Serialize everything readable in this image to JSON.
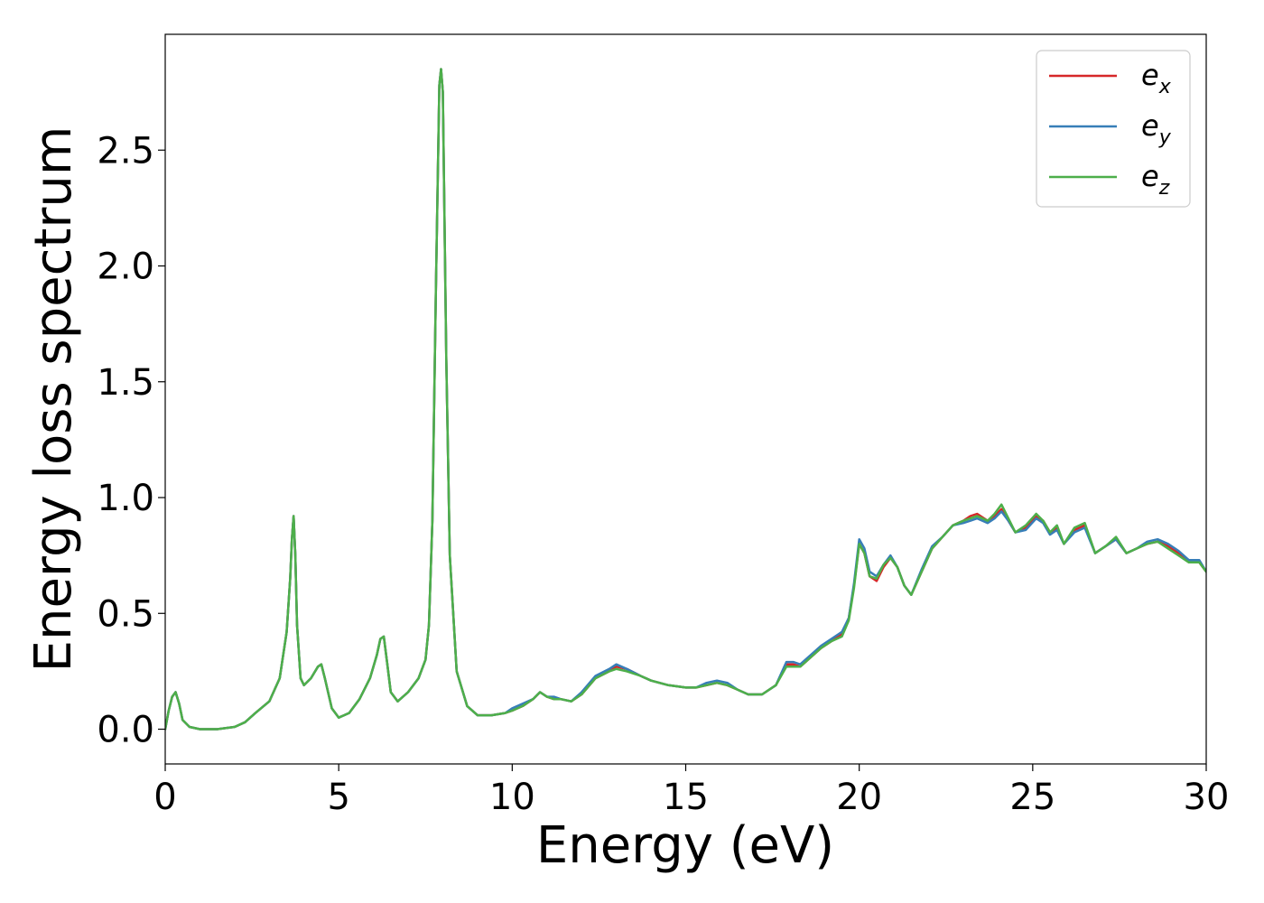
{
  "chart_data": {
    "type": "line",
    "title": "",
    "xlabel": "Energy (eV)",
    "ylabel": "Energy loss spectrum",
    "xlim": [
      0,
      30
    ],
    "ylim": [
      -0.15,
      3.0
    ],
    "xticks": [
      0,
      5,
      10,
      15,
      20,
      25,
      30
    ],
    "xtick_labels": [
      "0",
      "5",
      "10",
      "15",
      "20",
      "25",
      "30"
    ],
    "yticks": [
      0.0,
      0.5,
      1.0,
      1.5,
      2.0,
      2.5
    ],
    "ytick_labels": [
      "0.0",
      "0.5",
      "1.0",
      "1.5",
      "2.0",
      "2.5"
    ],
    "grid": false,
    "legend_position": "top-right",
    "series": [
      {
        "name": "e",
        "subscript": "x",
        "color": "#d62728",
        "x": [
          0,
          0.1,
          0.2,
          0.3,
          0.4,
          0.5,
          0.7,
          1.0,
          1.5,
          2.0,
          2.3,
          2.6,
          3.0,
          3.3,
          3.5,
          3.6,
          3.65,
          3.7,
          3.75,
          3.8,
          3.9,
          4.0,
          4.2,
          4.4,
          4.5,
          4.6,
          4.8,
          5.0,
          5.3,
          5.6,
          5.9,
          6.1,
          6.2,
          6.3,
          6.4,
          6.5,
          6.7,
          7.0,
          7.3,
          7.5,
          7.6,
          7.7,
          7.8,
          7.9,
          7.95,
          8.0,
          8.1,
          8.2,
          8.4,
          8.7,
          9.0,
          9.4,
          9.8,
          10.0,
          10.3,
          10.6,
          10.8,
          11.0,
          11.2,
          11.4,
          11.7,
          12.0,
          12.4,
          12.8,
          13.0,
          13.3,
          13.7,
          14.0,
          14.5,
          15.0,
          15.3,
          15.6,
          15.9,
          16.2,
          16.5,
          16.8,
          17.2,
          17.6,
          17.9,
          18.1,
          18.3,
          18.6,
          18.9,
          19.2,
          19.5,
          19.7,
          19.85,
          20.0,
          20.15,
          20.3,
          20.5,
          20.7,
          20.9,
          21.1,
          21.3,
          21.5,
          21.8,
          22.1,
          22.4,
          22.7,
          23.0,
          23.2,
          23.4,
          23.7,
          23.9,
          24.1,
          24.3,
          24.5,
          24.8,
          25.1,
          25.3,
          25.5,
          25.7,
          25.9,
          26.2,
          26.5,
          26.8,
          27.1,
          27.4,
          27.7,
          28.0,
          28.3,
          28.6,
          28.9,
          29.2,
          29.5,
          29.8,
          30.0
        ],
        "values": [
          0.0,
          0.08,
          0.14,
          0.16,
          0.11,
          0.04,
          0.01,
          0.0,
          0.0,
          0.01,
          0.03,
          0.07,
          0.12,
          0.22,
          0.42,
          0.65,
          0.82,
          0.92,
          0.75,
          0.45,
          0.22,
          0.19,
          0.22,
          0.27,
          0.28,
          0.22,
          0.09,
          0.05,
          0.07,
          0.13,
          0.22,
          0.32,
          0.39,
          0.4,
          0.28,
          0.16,
          0.12,
          0.16,
          0.22,
          0.3,
          0.45,
          0.9,
          1.9,
          2.78,
          2.85,
          2.75,
          1.6,
          0.75,
          0.25,
          0.1,
          0.06,
          0.06,
          0.07,
          0.08,
          0.1,
          0.13,
          0.16,
          0.14,
          0.13,
          0.13,
          0.12,
          0.15,
          0.22,
          0.25,
          0.27,
          0.26,
          0.23,
          0.21,
          0.19,
          0.18,
          0.18,
          0.19,
          0.2,
          0.19,
          0.17,
          0.15,
          0.15,
          0.19,
          0.28,
          0.28,
          0.27,
          0.31,
          0.35,
          0.38,
          0.41,
          0.48,
          0.62,
          0.8,
          0.76,
          0.66,
          0.64,
          0.7,
          0.74,
          0.7,
          0.62,
          0.58,
          0.68,
          0.78,
          0.83,
          0.88,
          0.9,
          0.92,
          0.93,
          0.9,
          0.92,
          0.95,
          0.9,
          0.85,
          0.87,
          0.92,
          0.9,
          0.85,
          0.87,
          0.8,
          0.86,
          0.88,
          0.76,
          0.79,
          0.82,
          0.76,
          0.78,
          0.8,
          0.81,
          0.79,
          0.76,
          0.73,
          0.72,
          0.68
        ]
      },
      {
        "name": "e",
        "subscript": "y",
        "color": "#377eb8",
        "x": [
          0,
          0.1,
          0.2,
          0.3,
          0.4,
          0.5,
          0.7,
          1.0,
          1.5,
          2.0,
          2.3,
          2.6,
          3.0,
          3.3,
          3.5,
          3.6,
          3.65,
          3.7,
          3.75,
          3.8,
          3.9,
          4.0,
          4.2,
          4.4,
          4.5,
          4.6,
          4.8,
          5.0,
          5.3,
          5.6,
          5.9,
          6.1,
          6.2,
          6.3,
          6.4,
          6.5,
          6.7,
          7.0,
          7.3,
          7.5,
          7.6,
          7.7,
          7.8,
          7.9,
          7.95,
          8.0,
          8.1,
          8.2,
          8.4,
          8.7,
          9.0,
          9.4,
          9.8,
          10.0,
          10.3,
          10.6,
          10.8,
          11.0,
          11.2,
          11.4,
          11.7,
          12.0,
          12.4,
          12.8,
          13.0,
          13.3,
          13.7,
          14.0,
          14.5,
          15.0,
          15.3,
          15.6,
          15.9,
          16.2,
          16.5,
          16.8,
          17.2,
          17.6,
          17.9,
          18.1,
          18.3,
          18.6,
          18.9,
          19.2,
          19.5,
          19.7,
          19.85,
          20.0,
          20.15,
          20.3,
          20.5,
          20.7,
          20.9,
          21.1,
          21.3,
          21.5,
          21.8,
          22.1,
          22.4,
          22.7,
          23.0,
          23.2,
          23.4,
          23.7,
          23.9,
          24.1,
          24.3,
          24.5,
          24.8,
          25.1,
          25.3,
          25.5,
          25.7,
          25.9,
          26.2,
          26.5,
          26.8,
          27.1,
          27.4,
          27.7,
          28.0,
          28.3,
          28.6,
          28.9,
          29.2,
          29.5,
          29.8,
          30.0
        ],
        "values": [
          0.0,
          0.08,
          0.14,
          0.16,
          0.11,
          0.04,
          0.01,
          0.0,
          0.0,
          0.01,
          0.03,
          0.07,
          0.12,
          0.22,
          0.42,
          0.65,
          0.82,
          0.92,
          0.75,
          0.45,
          0.22,
          0.19,
          0.22,
          0.27,
          0.28,
          0.22,
          0.09,
          0.05,
          0.07,
          0.13,
          0.22,
          0.32,
          0.39,
          0.4,
          0.28,
          0.16,
          0.12,
          0.16,
          0.22,
          0.3,
          0.45,
          0.9,
          1.9,
          2.78,
          2.85,
          2.75,
          1.6,
          0.75,
          0.25,
          0.1,
          0.06,
          0.06,
          0.07,
          0.09,
          0.11,
          0.13,
          0.16,
          0.14,
          0.14,
          0.13,
          0.12,
          0.16,
          0.23,
          0.26,
          0.28,
          0.26,
          0.23,
          0.21,
          0.19,
          0.18,
          0.18,
          0.2,
          0.21,
          0.2,
          0.17,
          0.15,
          0.15,
          0.19,
          0.29,
          0.29,
          0.28,
          0.32,
          0.36,
          0.39,
          0.42,
          0.48,
          0.63,
          0.82,
          0.78,
          0.68,
          0.66,
          0.71,
          0.75,
          0.7,
          0.62,
          0.58,
          0.69,
          0.79,
          0.83,
          0.88,
          0.89,
          0.9,
          0.91,
          0.89,
          0.91,
          0.94,
          0.9,
          0.85,
          0.86,
          0.91,
          0.89,
          0.84,
          0.86,
          0.8,
          0.85,
          0.87,
          0.76,
          0.79,
          0.82,
          0.76,
          0.78,
          0.81,
          0.82,
          0.8,
          0.77,
          0.73,
          0.73,
          0.68
        ]
      },
      {
        "name": "e",
        "subscript": "z",
        "color": "#4daf4a",
        "x": [
          0,
          0.1,
          0.2,
          0.3,
          0.4,
          0.5,
          0.7,
          1.0,
          1.5,
          2.0,
          2.3,
          2.6,
          3.0,
          3.3,
          3.5,
          3.6,
          3.65,
          3.7,
          3.75,
          3.8,
          3.9,
          4.0,
          4.2,
          4.4,
          4.5,
          4.6,
          4.8,
          5.0,
          5.3,
          5.6,
          5.9,
          6.1,
          6.2,
          6.3,
          6.4,
          6.5,
          6.7,
          7.0,
          7.3,
          7.5,
          7.6,
          7.7,
          7.8,
          7.9,
          7.95,
          8.0,
          8.1,
          8.2,
          8.4,
          8.7,
          9.0,
          9.4,
          9.8,
          10.0,
          10.3,
          10.6,
          10.8,
          11.0,
          11.2,
          11.4,
          11.7,
          12.0,
          12.4,
          12.8,
          13.0,
          13.3,
          13.7,
          14.0,
          14.5,
          15.0,
          15.3,
          15.6,
          15.9,
          16.2,
          16.5,
          16.8,
          17.2,
          17.6,
          17.9,
          18.1,
          18.3,
          18.6,
          18.9,
          19.2,
          19.5,
          19.7,
          19.85,
          20.0,
          20.15,
          20.3,
          20.5,
          20.7,
          20.9,
          21.1,
          21.3,
          21.5,
          21.8,
          22.1,
          22.4,
          22.7,
          23.0,
          23.2,
          23.4,
          23.7,
          23.9,
          24.1,
          24.3,
          24.5,
          24.8,
          25.1,
          25.3,
          25.5,
          25.7,
          25.9,
          26.2,
          26.5,
          26.8,
          27.1,
          27.4,
          27.7,
          28.0,
          28.3,
          28.6,
          28.9,
          29.2,
          29.5,
          29.8,
          30.0
        ],
        "values": [
          0.0,
          0.08,
          0.14,
          0.16,
          0.11,
          0.04,
          0.01,
          0.0,
          0.0,
          0.01,
          0.03,
          0.07,
          0.12,
          0.22,
          0.42,
          0.65,
          0.82,
          0.92,
          0.75,
          0.45,
          0.22,
          0.19,
          0.22,
          0.27,
          0.28,
          0.22,
          0.09,
          0.05,
          0.07,
          0.13,
          0.22,
          0.32,
          0.39,
          0.4,
          0.28,
          0.16,
          0.12,
          0.16,
          0.22,
          0.3,
          0.45,
          0.9,
          1.9,
          2.78,
          2.85,
          2.75,
          1.6,
          0.75,
          0.25,
          0.1,
          0.06,
          0.06,
          0.07,
          0.08,
          0.1,
          0.13,
          0.16,
          0.14,
          0.13,
          0.13,
          0.12,
          0.15,
          0.22,
          0.25,
          0.26,
          0.25,
          0.23,
          0.21,
          0.19,
          0.18,
          0.18,
          0.19,
          0.2,
          0.19,
          0.17,
          0.15,
          0.15,
          0.19,
          0.27,
          0.27,
          0.27,
          0.31,
          0.35,
          0.38,
          0.4,
          0.47,
          0.61,
          0.8,
          0.76,
          0.66,
          0.65,
          0.71,
          0.74,
          0.7,
          0.62,
          0.58,
          0.68,
          0.78,
          0.83,
          0.88,
          0.9,
          0.91,
          0.92,
          0.9,
          0.93,
          0.97,
          0.91,
          0.85,
          0.88,
          0.93,
          0.9,
          0.85,
          0.88,
          0.8,
          0.87,
          0.89,
          0.76,
          0.79,
          0.83,
          0.76,
          0.78,
          0.8,
          0.81,
          0.78,
          0.75,
          0.72,
          0.72,
          0.68
        ]
      }
    ]
  }
}
